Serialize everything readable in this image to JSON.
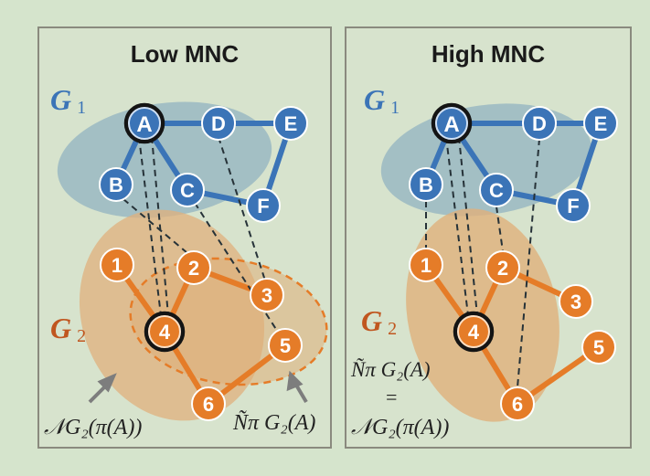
{
  "colors": {
    "background": "#d5e4cc",
    "panel": "#d7e3cd",
    "panel_border": "#8a8a7e",
    "g1_blue": "#3b74b7",
    "g1_blob": "#9ab9c2",
    "g2_orange": "#e57c28",
    "g2_blob": "#e0b07c",
    "highlight_ring": "#141414",
    "dashed_edge": "#263238",
    "arrow": "#7d7d7d"
  },
  "panels": [
    {
      "id": "low",
      "title": "Low MNC",
      "g1_label": "G",
      "g1_sub": "1",
      "g2_label": "G",
      "g2_sub": "2",
      "g1_nodes": [
        "A",
        "B",
        "C",
        "D",
        "E",
        "F"
      ],
      "g1_edges": [
        [
          "A",
          "B"
        ],
        [
          "A",
          "C"
        ],
        [
          "A",
          "D"
        ],
        [
          "D",
          "E"
        ],
        [
          "C",
          "F"
        ],
        [
          "E",
          "F"
        ]
      ],
      "g2_nodes": [
        "1",
        "2",
        "3",
        "4",
        "5",
        "6"
      ],
      "g2_edges": [
        [
          "1",
          "4"
        ],
        [
          "2",
          "4"
        ],
        [
          "2",
          "3"
        ],
        [
          "4",
          "6"
        ],
        [
          "6",
          "5"
        ]
      ],
      "alignment": [
        [
          "A",
          "4"
        ],
        [
          "B",
          "2"
        ],
        [
          "C",
          "5"
        ],
        [
          "D",
          "3"
        ]
      ],
      "highlight": [
        "A",
        "4"
      ],
      "annotations": [
        {
          "id": "neighborhood-of-image",
          "text": "𝒩G₂(π(A))"
        },
        {
          "id": "mapped-neighborhood",
          "text": "Ñπ G₂(A)"
        }
      ]
    },
    {
      "id": "high",
      "title": "High MNC",
      "g1_label": "G",
      "g1_sub": "1",
      "g2_label": "G",
      "g2_sub": "2",
      "g1_nodes": [
        "A",
        "B",
        "C",
        "D",
        "E",
        "F"
      ],
      "g1_edges": [
        [
          "A",
          "B"
        ],
        [
          "A",
          "C"
        ],
        [
          "A",
          "D"
        ],
        [
          "D",
          "E"
        ],
        [
          "C",
          "F"
        ],
        [
          "E",
          "F"
        ]
      ],
      "g2_nodes": [
        "1",
        "2",
        "3",
        "4",
        "5",
        "6"
      ],
      "g2_edges": [
        [
          "1",
          "4"
        ],
        [
          "2",
          "4"
        ],
        [
          "2",
          "3"
        ],
        [
          "4",
          "6"
        ],
        [
          "6",
          "5"
        ]
      ],
      "alignment": [
        [
          "A",
          "4"
        ],
        [
          "B",
          "1"
        ],
        [
          "C",
          "2"
        ],
        [
          "D",
          "6"
        ]
      ],
      "highlight": [
        "A",
        "4"
      ],
      "annotations": [
        {
          "id": "mapped-neighborhood",
          "text": "Ñπ G₂(A)"
        },
        {
          "id": "equals",
          "text": "="
        },
        {
          "id": "neighborhood-of-image",
          "text": "𝒩G₂(π(A))"
        }
      ]
    }
  ]
}
